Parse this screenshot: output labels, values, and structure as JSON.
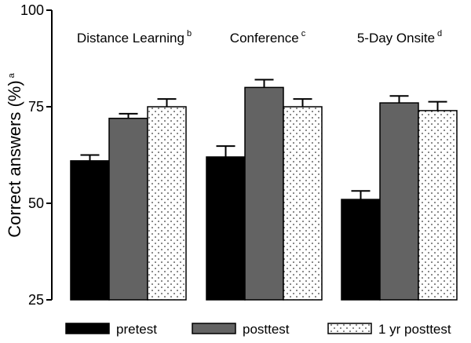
{
  "chart_data": {
    "type": "bar",
    "ylabel": "Correct answers (%)",
    "ylabel_superscript": "a",
    "ylim": [
      25,
      100
    ],
    "yticks": [
      25,
      50,
      75,
      100
    ],
    "categories": [
      {
        "label": "Distance Learning",
        "superscript": "b"
      },
      {
        "label": "Conference",
        "superscript": "c"
      },
      {
        "label": "5-Day Onsite",
        "superscript": "d"
      }
    ],
    "series": [
      {
        "name": "pretest",
        "color": "#000000",
        "pattern": "solid",
        "values": [
          61,
          62,
          51
        ],
        "errors": [
          1.5,
          2.8,
          2.2
        ]
      },
      {
        "name": "posttest",
        "color": "#636363",
        "pattern": "solid",
        "values": [
          72,
          80,
          76
        ],
        "errors": [
          1.2,
          2.0,
          1.8
        ]
      },
      {
        "name": "1 yr posttest",
        "color": "#ffffff",
        "pattern": "dotted",
        "values": [
          75,
          75,
          74
        ],
        "errors": [
          2.0,
          2.0,
          2.3
        ]
      }
    ]
  }
}
